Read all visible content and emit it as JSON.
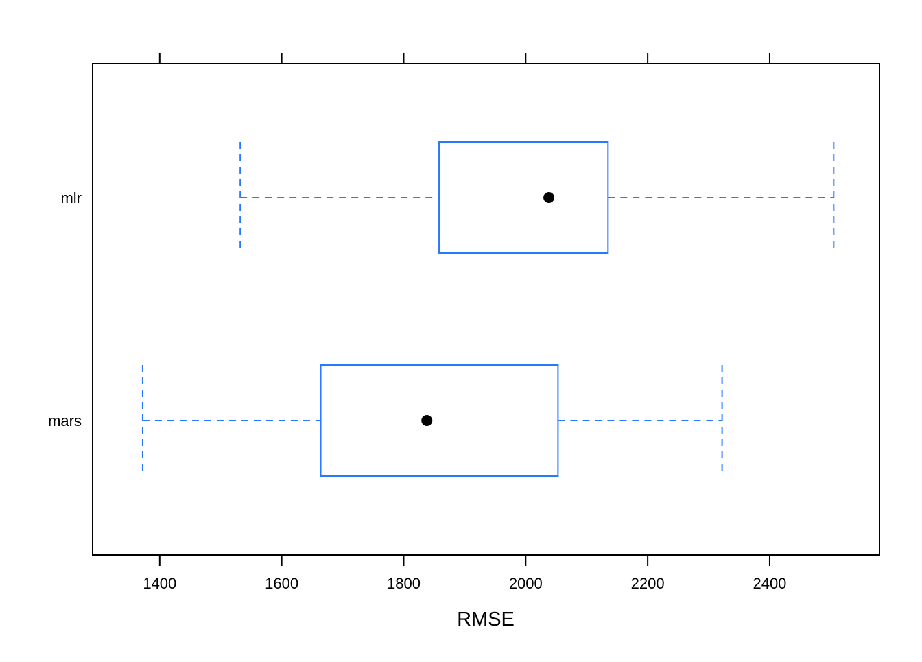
{
  "chart_data": {
    "type": "boxplot",
    "orientation": "horizontal",
    "xlabel": "RMSE",
    "ylabel": "",
    "title": "",
    "xlim": [
      1290,
      2580
    ],
    "x_ticks": [
      1400,
      1600,
      1800,
      2000,
      2200,
      2400
    ],
    "x_tick_labels": [
      "1400",
      "1600",
      "1800",
      "2000",
      "2200",
      "2400"
    ],
    "categories": [
      "mlr",
      "mars"
    ],
    "series": [
      {
        "name": "mlr",
        "whisker_low": 1532,
        "q1": 1858,
        "median": 2038,
        "q3": 2135,
        "whisker_high": 2505
      },
      {
        "name": "mars",
        "whisker_low": 1372,
        "q1": 1664,
        "median": 1838,
        "q3": 2053,
        "whisker_high": 2322
      }
    ],
    "colors": {
      "box": "#2979ff",
      "whisker": "#2979ff",
      "median_dot": "#000000",
      "frame": "#000000"
    },
    "grid": false,
    "legend": "none"
  }
}
